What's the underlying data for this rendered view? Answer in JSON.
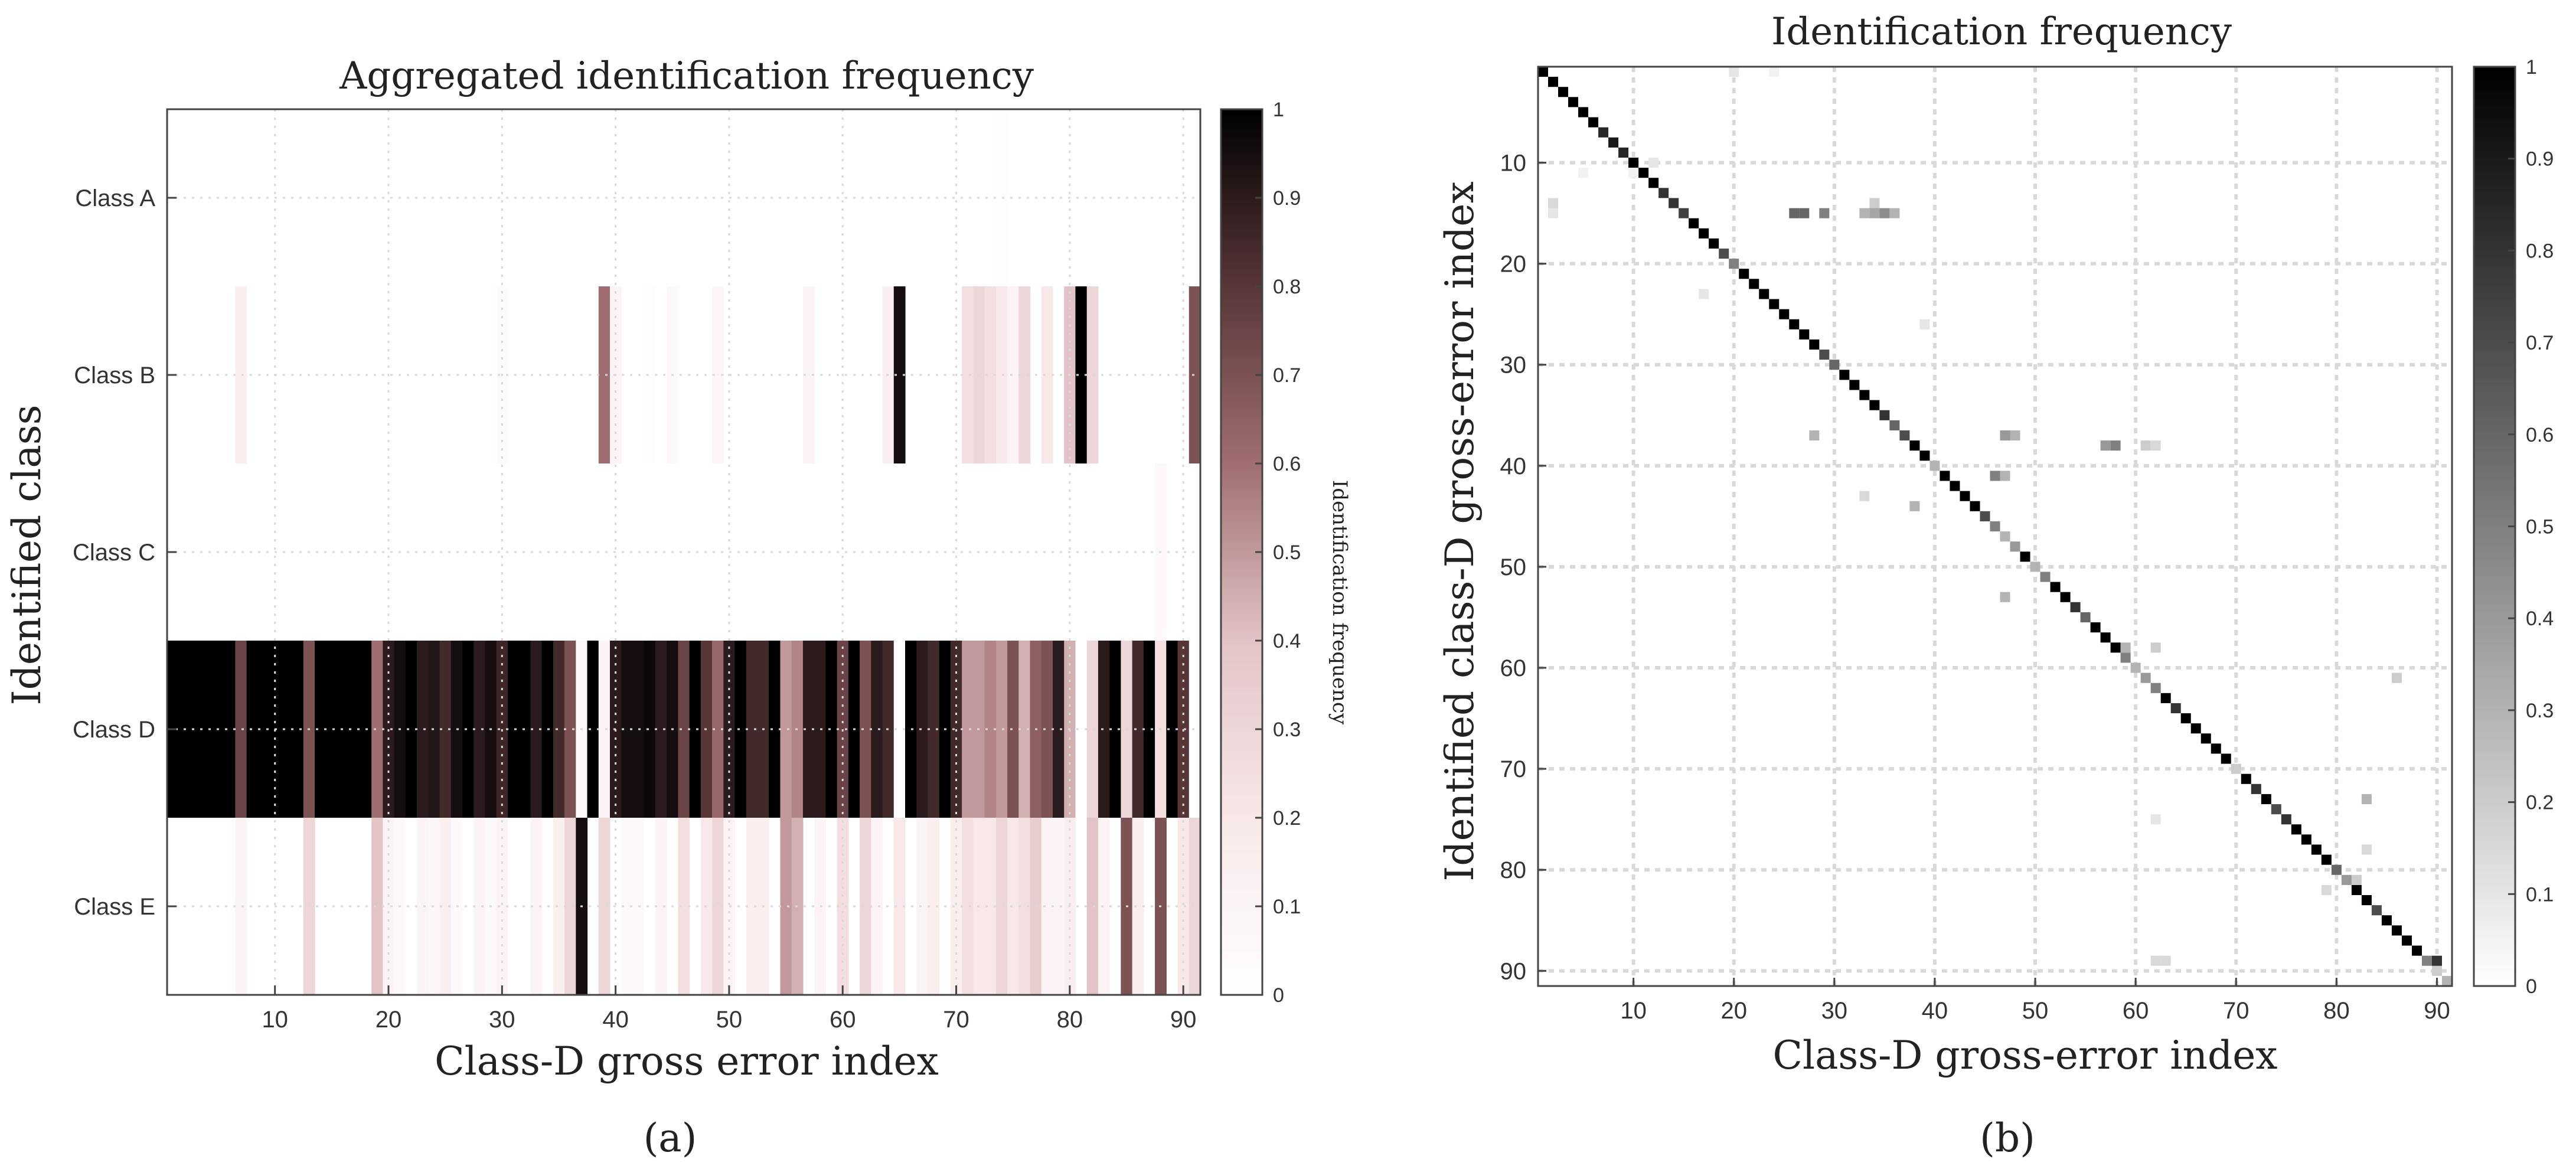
{
  "colors": {
    "a_colormap": [
      [
        255,
        255,
        255
      ],
      [
        248,
        232,
        233
      ],
      [
        226,
        196,
        198
      ],
      [
        160,
        110,
        114
      ],
      [
        88,
        54,
        56
      ],
      [
        0,
        0,
        0
      ]
    ],
    "b_colormap": [
      [
        255,
        255,
        255
      ],
      [
        0,
        0,
        0
      ]
    ],
    "grid": "#d9d9d9",
    "axis": "#444444"
  },
  "panel_a": {
    "caption": "(a)",
    "chart_data": {
      "type": "heatmap",
      "title": "Aggregated identification frequency",
      "xlabel": "Class-D gross error index",
      "ylabel": "Identified class",
      "colorbar_label": "Identification frequency",
      "x_range": [
        1,
        91
      ],
      "x_ticks": [
        10,
        20,
        30,
        40,
        50,
        60,
        70,
        80,
        90
      ],
      "y_categories": [
        "Class A",
        "Class B",
        "Class C",
        "Class D",
        "Class E"
      ],
      "colorbar_range": [
        0,
        1
      ],
      "colorbar_ticks": [
        0,
        0.1,
        0.2,
        0.3,
        0.4,
        0.5,
        0.6,
        0.7,
        0.8,
        0.9,
        1
      ],
      "grid": true,
      "rows": {
        "Class A": [
          [
            74,
            0.02
          ]
        ],
        "Class B": [
          [
            7,
            0.15
          ],
          [
            30,
            0.04
          ],
          [
            39,
            0.6
          ],
          [
            40,
            0.1
          ],
          [
            43,
            0.03
          ],
          [
            45,
            0.05
          ],
          [
            49,
            0.08
          ],
          [
            57,
            0.1
          ],
          [
            64,
            0.15
          ],
          [
            65,
            0.95
          ],
          [
            71,
            0.25
          ],
          [
            72,
            0.3
          ],
          [
            73,
            0.25
          ],
          [
            74,
            0.2
          ],
          [
            75,
            0.1
          ],
          [
            76,
            0.3
          ],
          [
            78,
            0.2
          ],
          [
            80,
            0.4
          ],
          [
            81,
            1.0
          ],
          [
            82,
            0.3
          ],
          [
            91,
            0.7
          ]
        ],
        "Class C": [
          [
            88,
            0.05
          ]
        ],
        "Class E": [
          [
            7,
            0.1
          ],
          [
            13,
            0.3
          ],
          [
            19,
            0.4
          ],
          [
            20,
            0.1
          ],
          [
            21,
            0.05
          ],
          [
            23,
            0.1
          ],
          [
            24,
            0.08
          ],
          [
            25,
            0.15
          ],
          [
            26,
            0.05
          ],
          [
            28,
            0.1
          ],
          [
            29,
            0.05
          ],
          [
            30,
            0.1
          ],
          [
            33,
            0.1
          ],
          [
            35,
            0.15
          ],
          [
            36,
            0.3
          ],
          [
            37,
            0.95
          ],
          [
            39,
            0.3
          ],
          [
            41,
            0.05
          ],
          [
            42,
            0.05
          ],
          [
            44,
            0.1
          ],
          [
            46,
            0.25
          ],
          [
            48,
            0.2
          ],
          [
            49,
            0.3
          ],
          [
            50,
            0.1
          ],
          [
            52,
            0.15
          ],
          [
            53,
            0.15
          ],
          [
            55,
            0.5
          ],
          [
            56,
            0.45
          ],
          [
            58,
            0.1
          ],
          [
            60,
            0.25
          ],
          [
            62,
            0.3
          ],
          [
            63,
            0.1
          ],
          [
            65,
            0.2
          ],
          [
            67,
            0.1
          ],
          [
            68,
            0.15
          ],
          [
            70,
            0.15
          ],
          [
            71,
            0.25
          ],
          [
            72,
            0.2
          ],
          [
            73,
            0.2
          ],
          [
            74,
            0.3
          ],
          [
            75,
            0.2
          ],
          [
            76,
            0.25
          ],
          [
            77,
            0.35
          ],
          [
            78,
            0.1
          ],
          [
            79,
            0.1
          ],
          [
            80,
            0.15
          ],
          [
            82,
            0.4
          ],
          [
            83,
            0.1
          ],
          [
            85,
            0.7
          ],
          [
            86,
            0.15
          ],
          [
            88,
            0.7
          ],
          [
            90,
            0.2
          ],
          [
            91,
            0.3
          ]
        ]
      },
      "class_d_default": 1.0
    }
  },
  "panel_b": {
    "caption": "(b)",
    "chart_data": {
      "type": "heatmap",
      "title": "Identification frequency",
      "xlabel": "Class-D gross-error index",
      "ylabel": "Identified class-D gross-error index",
      "x_range": [
        1,
        91
      ],
      "y_range": [
        1,
        91
      ],
      "x_ticks": [
        10,
        20,
        30,
        40,
        50,
        60,
        70,
        80,
        90
      ],
      "y_ticks": [
        10,
        20,
        30,
        40,
        50,
        60,
        70,
        80,
        90
      ],
      "colorbar_range": [
        0,
        1
      ],
      "colorbar_ticks": [
        0,
        0.1,
        0.2,
        0.3,
        0.4,
        0.5,
        0.6,
        0.7,
        0.8,
        0.9,
        1
      ],
      "grid": true,
      "diagonal_default": 1.0,
      "diagonal_overrides": [
        [
          7,
          0.85
        ],
        [
          8,
          0.9
        ],
        [
          9,
          0.85
        ],
        [
          13,
          0.8
        ],
        [
          14,
          0.8
        ],
        [
          15,
          0.75
        ],
        [
          19,
          0.7
        ],
        [
          20,
          0.5
        ],
        [
          29,
          0.7
        ],
        [
          30,
          0.6
        ],
        [
          35,
          0.8
        ],
        [
          36,
          0.6
        ],
        [
          37,
          0.7
        ],
        [
          40,
          0.3
        ],
        [
          45,
          0.7
        ],
        [
          46,
          0.5
        ],
        [
          47,
          0.3
        ],
        [
          48,
          0.4
        ],
        [
          50,
          0.3
        ],
        [
          51,
          0.5
        ],
        [
          54,
          0.8
        ],
        [
          55,
          0.6
        ],
        [
          59,
          0.5
        ],
        [
          60,
          0.3
        ],
        [
          61,
          0.4
        ],
        [
          62,
          0.5
        ],
        [
          64,
          0.8
        ],
        [
          70,
          0.2
        ],
        [
          72,
          0.8
        ],
        [
          74,
          0.7
        ],
        [
          75,
          0.8
        ],
        [
          80,
          0.6
        ],
        [
          81,
          0.4
        ],
        [
          84,
          0.7
        ],
        [
          89,
          0.5
        ],
        [
          90,
          0.2
        ],
        [
          91,
          0.3
        ]
      ],
      "off_diagonal": [
        [
          20,
          1,
          0.1
        ],
        [
          24,
          1,
          0.05
        ],
        [
          2,
          14,
          0.15
        ],
        [
          2,
          15,
          0.1
        ],
        [
          5,
          11,
          0.05
        ],
        [
          10,
          11,
          0.05
        ],
        [
          12,
          10,
          0.1
        ],
        [
          26,
          15,
          0.6
        ],
        [
          27,
          15,
          0.6
        ],
        [
          29,
          15,
          0.5
        ],
        [
          33,
          15,
          0.3
        ],
        [
          34,
          14,
          0.2
        ],
        [
          34,
          15,
          0.35
        ],
        [
          35,
          15,
          0.45
        ],
        [
          36,
          15,
          0.3
        ],
        [
          17,
          23,
          0.1
        ],
        [
          39,
          26,
          0.1
        ],
        [
          28,
          37,
          0.3
        ],
        [
          47,
          37,
          0.4
        ],
        [
          48,
          37,
          0.3
        ],
        [
          57,
          38,
          0.4
        ],
        [
          58,
          38,
          0.5
        ],
        [
          61,
          38,
          0.2
        ],
        [
          62,
          38,
          0.15
        ],
        [
          46,
          41,
          0.5
        ],
        [
          47,
          41,
          0.3
        ],
        [
          33,
          43,
          0.15
        ],
        [
          38,
          44,
          0.3
        ],
        [
          47,
          53,
          0.3
        ],
        [
          59,
          58,
          0.3
        ],
        [
          62,
          58,
          0.2
        ],
        [
          86,
          61,
          0.2
        ],
        [
          62,
          75,
          0.1
        ],
        [
          83,
          73,
          0.3
        ],
        [
          83,
          78,
          0.15
        ],
        [
          82,
          81,
          0.2
        ],
        [
          79,
          82,
          0.15
        ],
        [
          62,
          89,
          0.15
        ],
        [
          63,
          89,
          0.15
        ],
        [
          90,
          89,
          0.8
        ]
      ]
    }
  }
}
